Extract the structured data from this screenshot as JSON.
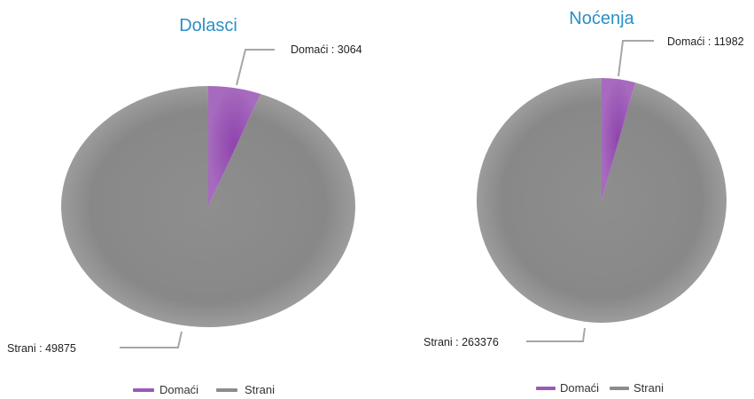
{
  "theme": {
    "title_color": "#2b8fc8",
    "text_color": "#222222",
    "leader_color": "#a6a6a6"
  },
  "chart_data": [
    {
      "type": "pie",
      "title": "Dolasci",
      "series": [
        {
          "name": "Domaći",
          "value": 3064,
          "label": "Domaći : 3064",
          "color": "#9b59b6"
        },
        {
          "name": "Strani",
          "value": 49875,
          "label": "Strani : 49875",
          "color": "#8c8c8c"
        }
      ],
      "legend": {
        "position": "bottom",
        "items": [
          "Domaći",
          "Strani"
        ]
      }
    },
    {
      "type": "pie",
      "title": "Noćenja",
      "series": [
        {
          "name": "Domaći",
          "value": 11982,
          "label": "Domaći : 11982",
          "color": "#9b59b6"
        },
        {
          "name": "Strani",
          "value": 263376,
          "label": "Strani : 263376",
          "color": "#8c8c8c"
        }
      ],
      "legend": {
        "position": "bottom",
        "items": [
          "Domaći",
          "Strani"
        ]
      }
    }
  ]
}
